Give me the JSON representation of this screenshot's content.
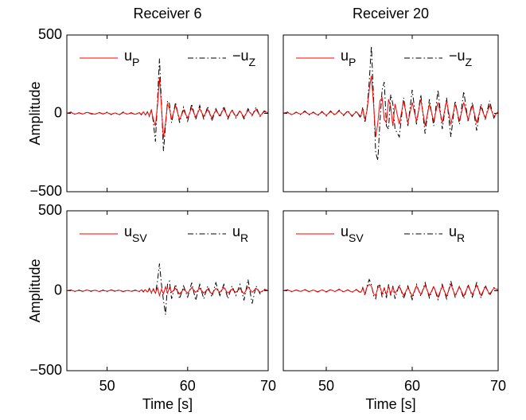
{
  "chart_data": [
    {
      "type": "line",
      "title": "Receiver 6",
      "ylabel": "Amplitude",
      "legend": "top",
      "xlim": [
        45,
        70
      ],
      "xticks": [
        50,
        60,
        70
      ],
      "ylim": [
        -500,
        500
      ],
      "yticks": [
        {
          "value": -500,
          "label": "−500"
        },
        0,
        500
      ],
      "x": [
        45,
        45.5,
        46,
        46.5,
        47,
        47.5,
        48,
        48.5,
        49,
        49.5,
        50,
        50.5,
        51,
        51.5,
        52,
        52.5,
        53,
        53.5,
        54,
        54.25,
        54.5,
        54.75,
        55,
        55.25,
        55.5,
        55.75,
        56,
        56.25,
        56.5,
        56.75,
        57,
        57.25,
        57.5,
        57.75,
        58,
        58.5,
        59,
        59.5,
        60,
        60.5,
        61,
        61.5,
        62,
        62.5,
        63,
        63.5,
        64,
        64.5,
        65,
        65.5,
        66,
        66.5,
        67,
        67.5,
        68,
        68.5,
        69,
        69.5,
        70
      ],
      "series": [
        {
          "name": "u",
          "subscript": "P",
          "color": "#ff0000",
          "values": [
            0,
            5,
            -5,
            3,
            -4,
            6,
            0,
            -5,
            4,
            -3,
            5,
            -6,
            3,
            -8,
            5,
            -4,
            2,
            -6,
            5,
            -8,
            10,
            -10,
            8,
            -15,
            20,
            -40,
            -80,
            50,
            230,
            40,
            -160,
            -60,
            60,
            30,
            -40,
            50,
            -40,
            20,
            -30,
            35,
            -25,
            30,
            -20,
            25,
            -30,
            20,
            -15,
            30,
            -25,
            20,
            -20,
            15,
            -25,
            20,
            -10,
            25,
            -15,
            10,
            5
          ]
        },
        {
          "name": "−u",
          "subscript": "Z",
          "color": "#000000",
          "values": [
            0,
            8,
            -6,
            4,
            -5,
            8,
            -3,
            -6,
            6,
            -4,
            8,
            -8,
            5,
            -10,
            8,
            -6,
            4,
            -8,
            6,
            -10,
            12,
            -12,
            10,
            -20,
            25,
            -60,
            -180,
            80,
            350,
            60,
            -240,
            -80,
            80,
            60,
            -60,
            70,
            -60,
            40,
            -50,
            60,
            -40,
            50,
            -35,
            45,
            -50,
            30,
            -25,
            45,
            -35,
            25,
            -30,
            20,
            -35,
            30,
            -15,
            40,
            -20,
            15,
            5
          ]
        }
      ]
    },
    {
      "type": "line",
      "title": "Receiver 20",
      "legend": "top",
      "xlim": [
        45,
        70
      ],
      "xticks": [
        50,
        60,
        70
      ],
      "ylim": [
        -500,
        500
      ],
      "yticks": [
        -500,
        0,
        500
      ],
      "x": [
        45,
        45.5,
        46,
        46.5,
        47,
        47.5,
        48,
        48.5,
        49,
        49.5,
        50,
        50.5,
        51,
        51.5,
        52,
        52.5,
        53,
        53.5,
        54,
        54.25,
        54.5,
        54.75,
        55,
        55.25,
        55.5,
        55.75,
        56,
        56.25,
        56.5,
        56.75,
        57,
        57.25,
        57.5,
        57.75,
        58,
        58.5,
        59,
        59.5,
        60,
        60.5,
        61,
        61.5,
        62,
        62.5,
        63,
        63.5,
        64,
        64.5,
        65,
        65.5,
        66,
        66.5,
        67,
        67.5,
        68,
        68.5,
        69,
        69.5,
        70
      ],
      "series": [
        {
          "name": "u",
          "subscript": "P",
          "color": "#ff0000",
          "values": [
            0,
            5,
            -8,
            6,
            -5,
            10,
            -6,
            5,
            -10,
            8,
            -12,
            10,
            -8,
            15,
            -10,
            12,
            -15,
            10,
            -20,
            30,
            -40,
            20,
            150,
            240,
            60,
            -150,
            -60,
            80,
            100,
            -40,
            -60,
            90,
            40,
            -80,
            60,
            -70,
            80,
            -60,
            70,
            -50,
            90,
            -80,
            60,
            -50,
            70,
            -60,
            80,
            -70,
            60,
            -50,
            70,
            -40,
            50,
            -60,
            40,
            -30,
            50,
            -20,
            10
          ]
        },
        {
          "name": "−u",
          "subscript": "Z",
          "color": "#000000",
          "values": [
            0,
            8,
            -10,
            8,
            -8,
            15,
            -10,
            8,
            -15,
            12,
            -18,
            15,
            -12,
            20,
            -15,
            18,
            -20,
            15,
            -30,
            40,
            -60,
            30,
            200,
            430,
            100,
            -250,
            -300,
            -50,
            150,
            200,
            -80,
            -100,
            120,
            60,
            -100,
            -150,
            100,
            -80,
            150,
            -70,
            120,
            -130,
            90,
            -80,
            150,
            -100,
            100,
            -150,
            80,
            -70,
            140,
            -50,
            70,
            -110,
            60,
            -40,
            80,
            -30,
            20
          ]
        }
      ]
    },
    {
      "type": "line",
      "ylabel": "Amplitude",
      "xlabel": "Time [s]",
      "legend": "top",
      "xlim": [
        45,
        70
      ],
      "xticks": [
        50,
        60,
        70
      ],
      "ylim": [
        -500,
        500
      ],
      "yticks": [
        {
          "value": -500,
          "label": "−500"
        },
        0,
        500
      ],
      "x": [
        45,
        45.5,
        46,
        46.5,
        47,
        47.5,
        48,
        48.5,
        49,
        49.5,
        50,
        50.5,
        51,
        51.5,
        52,
        52.5,
        53,
        53.5,
        54,
        54.25,
        54.5,
        54.75,
        55,
        55.25,
        55.5,
        55.75,
        56,
        56.25,
        56.5,
        56.75,
        57,
        57.25,
        57.5,
        57.75,
        58,
        58.5,
        59,
        59.5,
        60,
        60.5,
        61,
        61.5,
        62,
        62.5,
        63,
        63.5,
        64,
        64.5,
        65,
        65.5,
        66,
        66.5,
        67,
        67.5,
        68,
        68.5,
        69,
        69.5,
        70
      ],
      "series": [
        {
          "name": "u",
          "subscript": "SV",
          "color": "#ff0000",
          "values": [
            0,
            3,
            -3,
            2,
            -3,
            4,
            -2,
            3,
            -4,
            2,
            -3,
            4,
            -2,
            3,
            -4,
            2,
            -3,
            2,
            -4,
            5,
            -5,
            6,
            -8,
            10,
            -10,
            8,
            -15,
            20,
            -30,
            10,
            -20,
            25,
            -15,
            20,
            -10,
            15,
            -20,
            10,
            -15,
            20,
            -10,
            15,
            -15,
            10,
            -20,
            15,
            -10,
            20,
            -15,
            10,
            -10,
            15,
            -20,
            25,
            -10,
            15,
            -10,
            5,
            0
          ]
        },
        {
          "name": "u",
          "subscript": "R",
          "color": "#000000",
          "values": [
            0,
            5,
            -5,
            4,
            -5,
            6,
            -4,
            5,
            -6,
            4,
            -5,
            6,
            -4,
            5,
            -6,
            4,
            -5,
            4,
            -6,
            8,
            -8,
            10,
            -12,
            15,
            -15,
            12,
            -20,
            60,
            170,
            40,
            -60,
            -150,
            40,
            60,
            -50,
            40,
            -50,
            30,
            -40,
            50,
            -60,
            40,
            -50,
            30,
            -40,
            50,
            -30,
            40,
            -50,
            30,
            -30,
            40,
            -60,
            70,
            -80,
            30,
            -20,
            10,
            0
          ]
        }
      ]
    },
    {
      "type": "line",
      "xlabel": "Time [s]",
      "legend": "top",
      "xlim": [
        45,
        70
      ],
      "xticks": [
        50,
        60,
        70
      ],
      "ylim": [
        -500,
        500
      ],
      "yticks": [
        -500,
        0,
        500
      ],
      "x": [
        45,
        45.5,
        46,
        46.5,
        47,
        47.5,
        48,
        48.5,
        49,
        49.5,
        50,
        50.5,
        51,
        51.5,
        52,
        52.5,
        53,
        53.5,
        54,
        54.25,
        54.5,
        54.75,
        55,
        55.25,
        55.5,
        55.75,
        56,
        56.25,
        56.5,
        56.75,
        57,
        57.25,
        57.5,
        57.75,
        58,
        58.5,
        59,
        59.5,
        60,
        60.5,
        61,
        61.5,
        62,
        62.5,
        63,
        63.5,
        64,
        64.5,
        65,
        65.5,
        66,
        66.5,
        67,
        67.5,
        68,
        68.5,
        69,
        69.5,
        70
      ],
      "series": [
        {
          "name": "u",
          "subscript": "SV",
          "color": "#ff0000",
          "values": [
            0,
            4,
            -5,
            5,
            -4,
            6,
            -5,
            4,
            -6,
            5,
            -6,
            6,
            -5,
            8,
            -6,
            5,
            -8,
            6,
            -10,
            15,
            -20,
            25,
            40,
            30,
            -20,
            -30,
            20,
            25,
            -20,
            15,
            -25,
            30,
            -20,
            20,
            -15,
            25,
            -30,
            20,
            -35,
            30,
            -25,
            35,
            -30,
            25,
            -40,
            30,
            -35,
            40,
            -30,
            25,
            -35,
            30,
            -25,
            35,
            -30,
            25,
            -20,
            15,
            5
          ]
        },
        {
          "name": "u",
          "subscript": "R",
          "color": "#000000",
          "values": [
            0,
            6,
            -6,
            5,
            -6,
            8,
            -6,
            5,
            -8,
            6,
            -8,
            8,
            -6,
            10,
            -8,
            6,
            -10,
            8,
            -15,
            20,
            -30,
            30,
            70,
            40,
            -30,
            -50,
            30,
            35,
            -40,
            20,
            -45,
            40,
            -30,
            30,
            -50,
            40,
            -50,
            30,
            -55,
            40,
            -35,
            50,
            -45,
            30,
            -55,
            40,
            -50,
            60,
            -40,
            30,
            -50,
            40,
            -40,
            50,
            -45,
            35,
            -30,
            20,
            5
          ]
        }
      ]
    }
  ]
}
